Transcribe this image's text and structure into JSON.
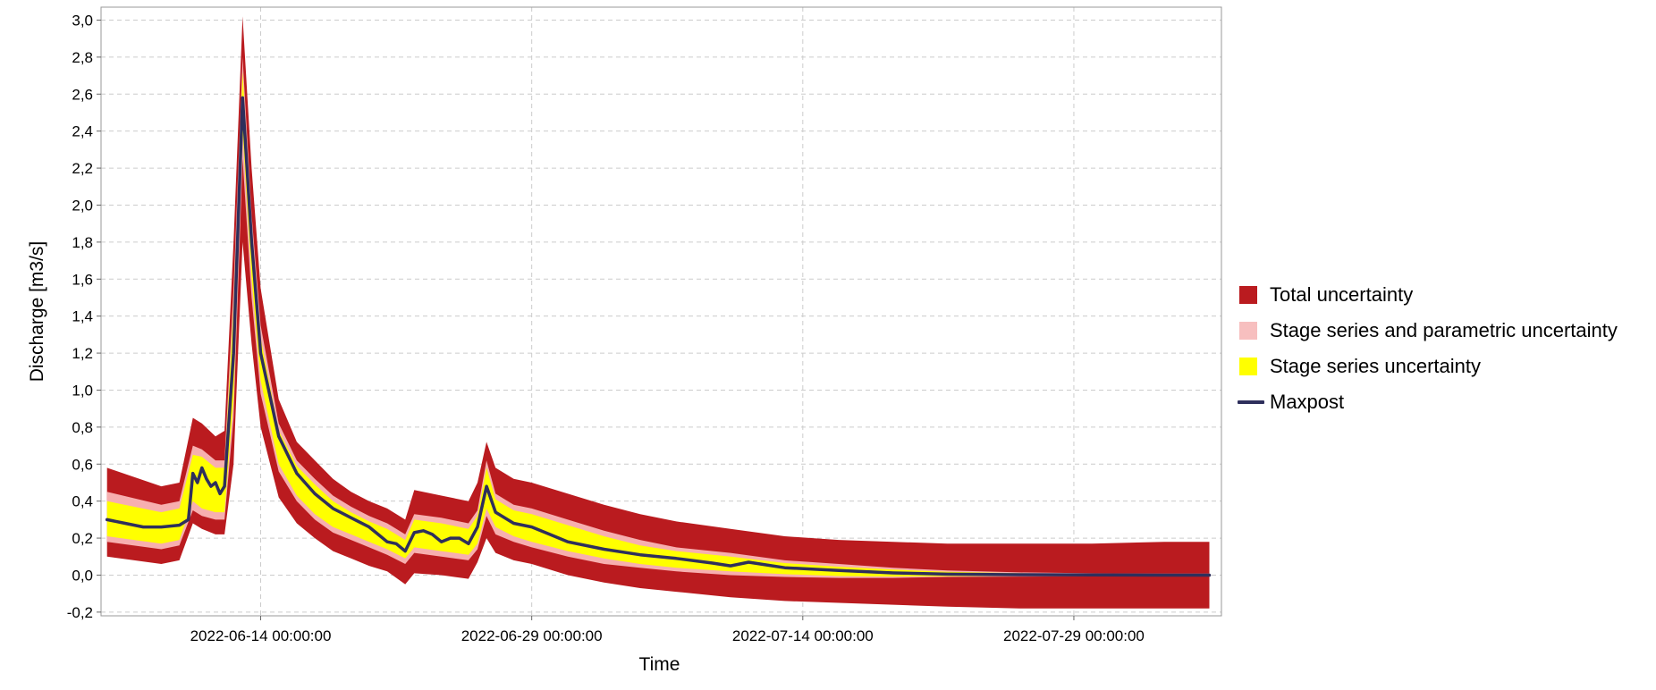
{
  "chart_data": {
    "type": "area",
    "title": "",
    "xlabel": "Time",
    "ylabel": "Discharge [m3/s]",
    "xlim": [
      "2022-06-05 04:00:00",
      "2022-08-06 04:00:00"
    ],
    "ylim": [
      -0.22,
      3.07
    ],
    "x_ticks": [
      "2022-06-14 00:00:00",
      "2022-06-29 00:00:00",
      "2022-07-14 00:00:00",
      "2022-07-29 00:00:00"
    ],
    "y_ticks": [
      -0.2,
      0.0,
      0.2,
      0.4,
      0.6,
      0.8,
      1.0,
      1.2,
      1.4,
      1.6,
      1.8,
      2.0,
      2.2,
      2.4,
      2.6,
      2.8,
      3.0
    ],
    "y_tick_labels": [
      "-0,2",
      "0,0",
      "0,2",
      "0,4",
      "0,6",
      "0,8",
      "1,0",
      "1,2",
      "1,4",
      "1,6",
      "1,8",
      "2,0",
      "2,2",
      "2,4",
      "2,6",
      "2,8",
      "3,0"
    ],
    "grid": true,
    "legend_position": "right",
    "colors": {
      "total": "#BA1B1F",
      "parametric": "#F7AFAF",
      "stage": "#FFFF00",
      "maxpost": "#2E2F5C",
      "grid": "#CCCCCC",
      "frame": "#999999"
    },
    "series": [
      {
        "name": "Maxpost",
        "kind": "line",
        "x": [
          "2022-06-05 12:00:00",
          "2022-06-06 12:00:00",
          "2022-06-07 12:00:00",
          "2022-06-08 12:00:00",
          "2022-06-09 12:00:00",
          "2022-06-10 00:00:00",
          "2022-06-10 06:00:00",
          "2022-06-10 12:00:00",
          "2022-06-10 18:00:00",
          "2022-06-11 00:00:00",
          "2022-06-11 06:00:00",
          "2022-06-11 12:00:00",
          "2022-06-11 18:00:00",
          "2022-06-12 00:00:00",
          "2022-06-12 12:00:00",
          "2022-06-13 00:00:00",
          "2022-06-13 12:00:00",
          "2022-06-14 00:00:00",
          "2022-06-15 00:00:00",
          "2022-06-16 00:00:00",
          "2022-06-17 00:00:00",
          "2022-06-18 00:00:00",
          "2022-06-19 00:00:00",
          "2022-06-20 00:00:00",
          "2022-06-20 12:00:00",
          "2022-06-21 00:00:00",
          "2022-06-21 12:00:00",
          "2022-06-22 00:00:00",
          "2022-06-22 12:00:00",
          "2022-06-23 00:00:00",
          "2022-06-23 12:00:00",
          "2022-06-24 00:00:00",
          "2022-06-24 12:00:00",
          "2022-06-25 00:00:00",
          "2022-06-25 12:00:00",
          "2022-06-26 00:00:00",
          "2022-06-26 12:00:00",
          "2022-06-27 00:00:00",
          "2022-06-28 00:00:00",
          "2022-06-29 00:00:00",
          "2022-06-30 00:00:00",
          "2022-07-01 00:00:00",
          "2022-07-03 00:00:00",
          "2022-07-05 00:00:00",
          "2022-07-07 00:00:00",
          "2022-07-09 00:00:00",
          "2022-07-10 00:00:00",
          "2022-07-11 00:00:00",
          "2022-07-13 00:00:00",
          "2022-07-16 00:00:00",
          "2022-07-19 00:00:00",
          "2022-07-22 00:00:00",
          "2022-07-26 00:00:00",
          "2022-07-30 00:00:00",
          "2022-08-03 00:00:00",
          "2022-08-05 12:00:00"
        ],
        "y": [
          0.3,
          0.28,
          0.26,
          0.26,
          0.27,
          0.3,
          0.55,
          0.5,
          0.58,
          0.52,
          0.48,
          0.5,
          0.44,
          0.48,
          1.2,
          2.58,
          1.8,
          1.2,
          0.75,
          0.55,
          0.44,
          0.36,
          0.31,
          0.26,
          0.22,
          0.18,
          0.17,
          0.13,
          0.23,
          0.24,
          0.22,
          0.18,
          0.2,
          0.2,
          0.17,
          0.26,
          0.48,
          0.34,
          0.28,
          0.26,
          0.22,
          0.18,
          0.14,
          0.11,
          0.09,
          0.065,
          0.05,
          0.07,
          0.04,
          0.025,
          0.012,
          0.005,
          0.002,
          0.001,
          0.0,
          0.0
        ]
      },
      {
        "name": "Total uncertainty",
        "kind": "band",
        "x": [
          "2022-06-05 12:00:00",
          "2022-06-08 12:00:00",
          "2022-06-09 12:00:00",
          "2022-06-10 06:00:00",
          "2022-06-10 18:00:00",
          "2022-06-11 12:00:00",
          "2022-06-12 00:00:00",
          "2022-06-12 12:00:00",
          "2022-06-13 00:00:00",
          "2022-06-13 12:00:00",
          "2022-06-14 00:00:00",
          "2022-06-15 00:00:00",
          "2022-06-16 00:00:00",
          "2022-06-17 00:00:00",
          "2022-06-18 00:00:00",
          "2022-06-19 00:00:00",
          "2022-06-20 00:00:00",
          "2022-06-21 00:00:00",
          "2022-06-22 00:00:00",
          "2022-06-22 12:00:00",
          "2022-06-24 00:00:00",
          "2022-06-25 12:00:00",
          "2022-06-26 00:00:00",
          "2022-06-26 12:00:00",
          "2022-06-27 00:00:00",
          "2022-06-28 00:00:00",
          "2022-06-29 00:00:00",
          "2022-07-01 00:00:00",
          "2022-07-03 00:00:00",
          "2022-07-05 00:00:00",
          "2022-07-07 00:00:00",
          "2022-07-10 00:00:00",
          "2022-07-13 00:00:00",
          "2022-07-16 00:00:00",
          "2022-07-19 00:00:00",
          "2022-07-22 00:00:00",
          "2022-07-26 00:00:00",
          "2022-07-30 00:00:00",
          "2022-08-03 00:00:00",
          "2022-08-05 12:00:00"
        ],
        "upper": [
          0.58,
          0.48,
          0.5,
          0.85,
          0.82,
          0.75,
          0.78,
          1.8,
          3.02,
          2.2,
          1.55,
          0.95,
          0.72,
          0.62,
          0.52,
          0.45,
          0.4,
          0.36,
          0.3,
          0.46,
          0.43,
          0.4,
          0.5,
          0.72,
          0.58,
          0.52,
          0.5,
          0.44,
          0.38,
          0.33,
          0.29,
          0.25,
          0.21,
          0.19,
          0.18,
          0.17,
          0.17,
          0.17,
          0.18,
          0.18
        ],
        "lower": [
          0.1,
          0.06,
          0.08,
          0.28,
          0.25,
          0.22,
          0.22,
          0.6,
          1.8,
          1.25,
          0.8,
          0.42,
          0.28,
          0.2,
          0.13,
          0.09,
          0.05,
          0.02,
          -0.05,
          0.01,
          0.0,
          -0.02,
          0.07,
          0.2,
          0.12,
          0.08,
          0.06,
          0.0,
          -0.04,
          -0.07,
          -0.09,
          -0.12,
          -0.14,
          -0.15,
          -0.16,
          -0.17,
          -0.18,
          -0.18,
          -0.18,
          -0.18
        ]
      },
      {
        "name": "Stage series and parametric uncertainty",
        "kind": "band",
        "x": [
          "2022-06-05 12:00:00",
          "2022-06-08 12:00:00",
          "2022-06-09 12:00:00",
          "2022-06-10 06:00:00",
          "2022-06-10 18:00:00",
          "2022-06-11 12:00:00",
          "2022-06-12 00:00:00",
          "2022-06-12 12:00:00",
          "2022-06-13 00:00:00",
          "2022-06-13 12:00:00",
          "2022-06-14 00:00:00",
          "2022-06-15 00:00:00",
          "2022-06-16 00:00:00",
          "2022-06-17 00:00:00",
          "2022-06-18 00:00:00",
          "2022-06-19 00:00:00",
          "2022-06-20 00:00:00",
          "2022-06-21 00:00:00",
          "2022-06-22 00:00:00",
          "2022-06-22 12:00:00",
          "2022-06-24 00:00:00",
          "2022-06-25 12:00:00",
          "2022-06-26 00:00:00",
          "2022-06-26 12:00:00",
          "2022-06-27 00:00:00",
          "2022-06-28 00:00:00",
          "2022-06-29 00:00:00",
          "2022-07-01 00:00:00",
          "2022-07-03 00:00:00",
          "2022-07-05 00:00:00",
          "2022-07-07 00:00:00",
          "2022-07-10 00:00:00",
          "2022-07-13 00:00:00",
          "2022-07-16 00:00:00",
          "2022-07-19 00:00:00",
          "2022-07-22 00:00:00",
          "2022-07-26 00:00:00",
          "2022-07-30 00:00:00",
          "2022-08-03 00:00:00",
          "2022-08-05 12:00:00"
        ],
        "upper": [
          0.45,
          0.38,
          0.4,
          0.7,
          0.68,
          0.62,
          0.62,
          1.55,
          2.8,
          1.95,
          1.35,
          0.82,
          0.62,
          0.52,
          0.43,
          0.37,
          0.32,
          0.28,
          0.22,
          0.33,
          0.31,
          0.28,
          0.35,
          0.62,
          0.44,
          0.38,
          0.36,
          0.3,
          0.24,
          0.19,
          0.15,
          0.12,
          0.08,
          0.06,
          0.04,
          0.025,
          0.015,
          0.01,
          0.008,
          0.008
        ],
        "lower": [
          0.18,
          0.14,
          0.16,
          0.35,
          0.32,
          0.3,
          0.3,
          0.85,
          2.25,
          1.5,
          0.98,
          0.56,
          0.4,
          0.3,
          0.23,
          0.19,
          0.15,
          0.11,
          0.06,
          0.12,
          0.1,
          0.08,
          0.14,
          0.32,
          0.22,
          0.18,
          0.15,
          0.1,
          0.06,
          0.04,
          0.02,
          0.0,
          -0.01,
          -0.015,
          -0.015,
          -0.01,
          -0.008,
          -0.006,
          -0.005,
          -0.005
        ]
      },
      {
        "name": "Stage series uncertainty",
        "kind": "band",
        "x": [
          "2022-06-05 12:00:00",
          "2022-06-08 12:00:00",
          "2022-06-09 12:00:00",
          "2022-06-10 06:00:00",
          "2022-06-10 18:00:00",
          "2022-06-11 12:00:00",
          "2022-06-12 00:00:00",
          "2022-06-12 12:00:00",
          "2022-06-13 00:00:00",
          "2022-06-13 12:00:00",
          "2022-06-14 00:00:00",
          "2022-06-15 00:00:00",
          "2022-06-16 00:00:00",
          "2022-06-17 00:00:00",
          "2022-06-18 00:00:00",
          "2022-06-19 00:00:00",
          "2022-06-20 00:00:00",
          "2022-06-21 00:00:00",
          "2022-06-22 00:00:00",
          "2022-06-22 12:00:00",
          "2022-06-24 00:00:00",
          "2022-06-25 12:00:00",
          "2022-06-26 00:00:00",
          "2022-06-26 12:00:00",
          "2022-06-27 00:00:00",
          "2022-06-28 00:00:00",
          "2022-06-29 00:00:00",
          "2022-07-01 00:00:00",
          "2022-07-03 00:00:00",
          "2022-07-05 00:00:00",
          "2022-07-07 00:00:00",
          "2022-07-10 00:00:00",
          "2022-07-13 00:00:00",
          "2022-07-16 00:00:00",
          "2022-07-19 00:00:00",
          "2022-07-22 00:00:00",
          "2022-07-26 00:00:00",
          "2022-07-30 00:00:00",
          "2022-08-03 00:00:00",
          "2022-08-05 12:00:00"
        ],
        "upper": [
          0.4,
          0.34,
          0.36,
          0.65,
          0.64,
          0.58,
          0.58,
          1.45,
          2.72,
          1.88,
          1.28,
          0.78,
          0.59,
          0.49,
          0.4,
          0.34,
          0.29,
          0.25,
          0.19,
          0.3,
          0.28,
          0.25,
          0.32,
          0.58,
          0.41,
          0.35,
          0.33,
          0.27,
          0.21,
          0.16,
          0.13,
          0.1,
          0.065,
          0.045,
          0.03,
          0.018,
          0.01,
          0.006,
          0.005,
          0.005
        ],
        "lower": [
          0.21,
          0.17,
          0.19,
          0.4,
          0.36,
          0.34,
          0.34,
          0.95,
          2.4,
          1.6,
          1.05,
          0.6,
          0.43,
          0.33,
          0.26,
          0.22,
          0.18,
          0.14,
          0.09,
          0.15,
          0.13,
          0.11,
          0.17,
          0.36,
          0.26,
          0.21,
          0.18,
          0.13,
          0.09,
          0.06,
          0.04,
          0.02,
          0.005,
          -0.005,
          -0.008,
          -0.006,
          -0.005,
          -0.004,
          -0.004,
          -0.004
        ]
      }
    ]
  },
  "legend": {
    "items": [
      {
        "label": "Total uncertainty",
        "color": "#BA1B1F",
        "marker": "square"
      },
      {
        "label": "Stage series and parametric uncertainty",
        "color": "#F7BFBF",
        "marker": "square"
      },
      {
        "label": "Stage series uncertainty",
        "color": "#FFFF00",
        "marker": "square"
      },
      {
        "label": "Maxpost",
        "color": "#2E2F5C",
        "marker": "line"
      }
    ]
  }
}
